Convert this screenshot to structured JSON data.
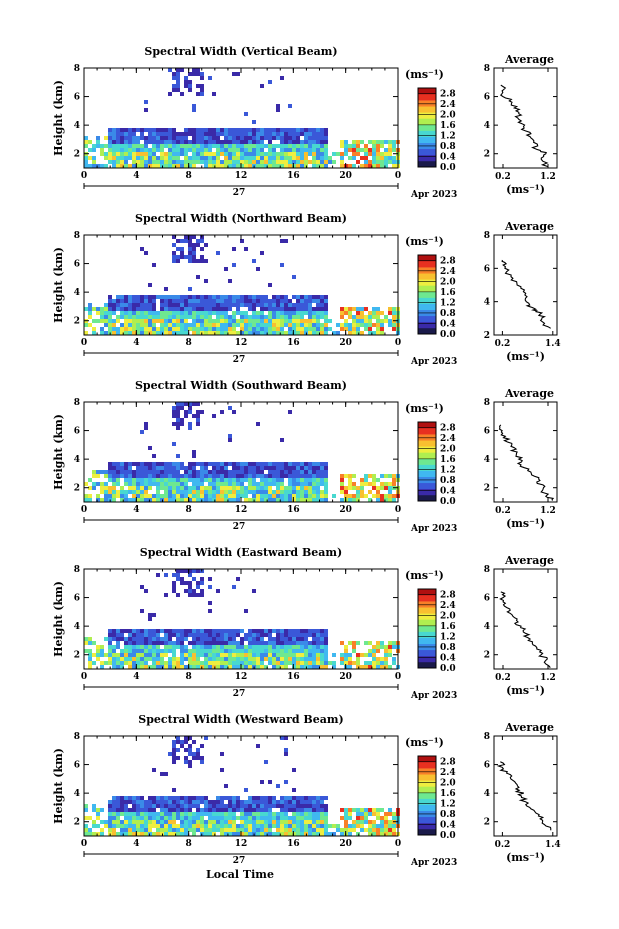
{
  "chart_data": {
    "type": "heatmap",
    "shared": {
      "x_ticks": [
        "0",
        "4",
        "8",
        "12",
        "16",
        "20",
        "0"
      ],
      "xlim": [
        0,
        24
      ],
      "date_label": "27",
      "month_label": "Apr 2023",
      "ylabel": "Height (km)",
      "y_ticks": [
        "2",
        "4",
        "6",
        "8"
      ],
      "ylim": [
        1,
        8
      ],
      "colorbar_unit": "(ms⁻¹)",
      "colorbar_ticks": [
        "0.0",
        "0.4",
        "0.8",
        "1.2",
        "1.6",
        "2.0",
        "2.4",
        "2.8"
      ],
      "colorbar_range": [
        0,
        3.0
      ],
      "colors": [
        "#1a1a4a",
        "#3a2aa8",
        "#3a58d8",
        "#3a8ae8",
        "#40b8f0",
        "#48d8d0",
        "#6ee890",
        "#b0ee50",
        "#eeee40",
        "#f8c030",
        "#f88028",
        "#e83020",
        "#b01010"
      ],
      "avg_title": "Average",
      "avg_y_ticks": [
        "2",
        "4",
        "6",
        "8"
      ],
      "avg_xlabel": "(ms⁻¹)",
      "xlabel": "Local Time"
    },
    "panels": [
      {
        "title": "Spectral Width (Vertical Beam)",
        "avg_x_ticks": [
          "0.2",
          "1.2"
        ],
        "avg_xlim": [
          0.0,
          1.4
        ],
        "avg_ylim": [
          1,
          8
        ],
        "average_profile": [
          [
            1.2,
            1.1
          ],
          [
            1.05,
            1.6
          ],
          [
            1.15,
            2.0
          ],
          [
            0.95,
            2.3
          ],
          [
            0.88,
            2.8
          ],
          [
            0.8,
            3.2
          ],
          [
            0.7,
            3.6
          ],
          [
            0.68,
            4.0
          ],
          [
            0.55,
            4.4
          ],
          [
            0.55,
            4.8
          ],
          [
            0.45,
            5.2
          ],
          [
            0.4,
            5.6
          ],
          [
            0.2,
            6.0
          ],
          [
            0.18,
            6.4
          ],
          [
            0.15,
            6.8
          ]
        ]
      },
      {
        "title": "Spectral Width (Northward Beam)",
        "avg_x_ticks": [
          "0.2",
          "1.4"
        ],
        "avg_xlim": [
          0.0,
          1.5
        ],
        "avg_ylim": [
          2,
          8
        ],
        "average_profile": [
          [
            1.35,
            2.4
          ],
          [
            1.15,
            2.8
          ],
          [
            1.2,
            3.1
          ],
          [
            1.0,
            3.4
          ],
          [
            0.95,
            3.6
          ],
          [
            0.85,
            3.8
          ],
          [
            0.75,
            4.2
          ],
          [
            0.7,
            4.6
          ],
          [
            0.55,
            5.0
          ],
          [
            0.45,
            5.4
          ],
          [
            0.3,
            5.8
          ],
          [
            0.22,
            6.2
          ],
          [
            0.2,
            6.5
          ]
        ]
      },
      {
        "title": "Spectral Width (Southward Beam)",
        "avg_x_ticks": [
          "0.2",
          "1.2"
        ],
        "avg_xlim": [
          0.0,
          1.4
        ],
        "avg_ylim": [
          1,
          8
        ],
        "average_profile": [
          [
            1.3,
            1.1
          ],
          [
            1.15,
            1.4
          ],
          [
            1.1,
            2.0
          ],
          [
            0.95,
            2.4
          ],
          [
            0.9,
            2.8
          ],
          [
            0.75,
            3.2
          ],
          [
            0.6,
            3.6
          ],
          [
            0.55,
            4.0
          ],
          [
            0.5,
            4.4
          ],
          [
            0.45,
            4.8
          ],
          [
            0.3,
            5.2
          ],
          [
            0.25,
            5.6
          ],
          [
            0.18,
            6.0
          ],
          [
            0.15,
            6.4
          ]
        ]
      },
      {
        "title": "Spectral Width (Eastward Beam)",
        "avg_x_ticks": [
          "0.2",
          "1.2"
        ],
        "avg_xlim": [
          0.0,
          1.4
        ],
        "avg_ylim": [
          1,
          8
        ],
        "average_profile": [
          [
            1.25,
            1.1
          ],
          [
            1.15,
            1.6
          ],
          [
            1.05,
            2.0
          ],
          [
            0.95,
            2.4
          ],
          [
            0.85,
            2.8
          ],
          [
            0.75,
            3.2
          ],
          [
            0.65,
            3.6
          ],
          [
            0.6,
            4.0
          ],
          [
            0.5,
            4.4
          ],
          [
            0.4,
            4.8
          ],
          [
            0.35,
            5.2
          ],
          [
            0.25,
            5.6
          ],
          [
            0.2,
            6.0
          ],
          [
            0.15,
            6.4
          ]
        ]
      },
      {
        "title": "Spectral Width (Westward Beam)",
        "avg_x_ticks": [
          "0.2",
          "1.4"
        ],
        "avg_xlim": [
          0.0,
          1.5
        ],
        "avg_ylim": [
          1,
          8
        ],
        "average_profile": [
          [
            1.35,
            1.4
          ],
          [
            1.2,
            1.8
          ],
          [
            1.1,
            2.2
          ],
          [
            1.0,
            2.6
          ],
          [
            0.85,
            3.0
          ],
          [
            0.75,
            3.4
          ],
          [
            0.65,
            3.8
          ],
          [
            0.6,
            4.2
          ],
          [
            0.55,
            4.6
          ],
          [
            0.4,
            5.0
          ],
          [
            0.3,
            5.4
          ],
          [
            0.2,
            5.8
          ],
          [
            0.15,
            6.2
          ]
        ]
      }
    ]
  }
}
